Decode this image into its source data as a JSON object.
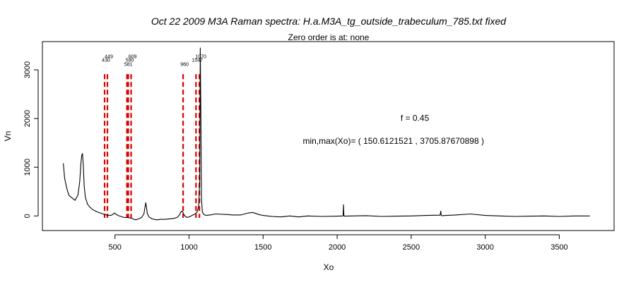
{
  "chart_data": {
    "type": "line",
    "title": "Oct 22 2009 M3A Raman spectra: H.a.M3A_tg_outside_trabeculum_785.txt fixed",
    "subtitle": "Zero order is at:  none",
    "xlabel": "Xo",
    "ylabel": "Vn",
    "xlim": [
      10,
      3870
    ],
    "ylim": [
      -300,
      3580
    ],
    "x_ticks": [
      500,
      1000,
      1500,
      2000,
      2500,
      3000,
      3500
    ],
    "y_ticks": [
      0,
      1000,
      2000,
      3000
    ],
    "grid": false,
    "legend": "none",
    "line_color": "#000000",
    "marker_color": "#dd0000",
    "annotations": [
      {
        "text": "f =  0.45",
        "x": 2525,
        "y": 1950
      },
      {
        "text": "min,max(Xo)= ( 150.6121521 , 3705.87670898 )",
        "x": 2380,
        "y": 1480
      }
    ],
    "peak_markers": [
      {
        "label": "430",
        "x": 430,
        "label_y": 3165
      },
      {
        "label": "449",
        "x": 449,
        "label_y": 3240
      },
      {
        "label": "581",
        "x": 581,
        "label_y": 3080
      },
      {
        "label": "590",
        "x": 590,
        "label_y": 3165
      },
      {
        "label": "609",
        "x": 609,
        "label_y": 3240
      },
      {
        "label": "960",
        "x": 960,
        "label_y": 3080
      },
      {
        "label": "1047",
        "x": 1047,
        "label_y": 3165
      },
      {
        "label": "1070",
        "x": 1070,
        "label_y": 3240
      }
    ],
    "series": [
      {
        "x": [
          151,
          160,
          175,
          190,
          210,
          230,
          250,
          262,
          270,
          276,
          281,
          286,
          292,
          300,
          315,
          330,
          350,
          375,
          400,
          425,
          450,
          470,
          485,
          495,
          505,
          520,
          540,
          560,
          580,
          600,
          620,
          640,
          660,
          680,
          695,
          703,
          708,
          712,
          718,
          730,
          750,
          780,
          810,
          840,
          870,
          900,
          920,
          935,
          945,
          952,
          958,
          964,
          972,
          985,
          1000,
          1020,
          1040,
          1055,
          1065,
          1072,
          1076,
          1080,
          1084,
          1090,
          1100,
          1115,
          1140,
          1180,
          1250,
          1300,
          1350,
          1400,
          1430,
          1450,
          1470,
          1500,
          1560,
          1620,
          1680,
          1740,
          1800,
          1900,
          2000,
          2040,
          2043,
          2045,
          2047,
          2050,
          2100,
          2200,
          2300,
          2400,
          2500,
          2600,
          2695,
          2700,
          2702,
          2705,
          2800,
          2900,
          3000,
          3100,
          3200,
          3300,
          3400,
          3500,
          3600,
          3706
        ],
        "y": [
          1080,
          780,
          560,
          420,
          370,
          320,
          430,
          700,
          1080,
          1250,
          1280,
          1060,
          620,
          380,
          240,
          180,
          130,
          90,
          60,
          35,
          15,
          10,
          30,
          60,
          40,
          10,
          -10,
          -30,
          -30,
          -40,
          -60,
          -80,
          -60,
          -30,
          40,
          180,
          270,
          200,
          50,
          -20,
          -60,
          -80,
          -70,
          -70,
          -60,
          -50,
          -30,
          20,
          80,
          100,
          80,
          40,
          0,
          -30,
          -20,
          10,
          40,
          80,
          200,
          700,
          3450,
          2000,
          350,
          80,
          30,
          10,
          20,
          40,
          30,
          20,
          20,
          60,
          70,
          50,
          30,
          10,
          -10,
          -20,
          0,
          -20,
          0,
          -10,
          -5,
          0,
          230,
          50,
          0,
          -5,
          0,
          5,
          -10,
          -5,
          0,
          10,
          15,
          100,
          20,
          5,
          20,
          40,
          10,
          0,
          -10,
          -5,
          0,
          -10,
          0,
          0
        ]
      }
    ]
  }
}
